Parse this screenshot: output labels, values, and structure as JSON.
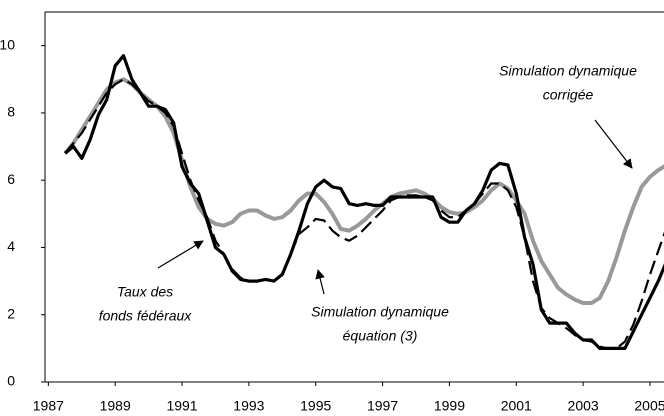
{
  "chart_data": {
    "type": "line",
    "x": [
      1987.5,
      1987.75,
      1988,
      1988.25,
      1988.5,
      1988.75,
      1989,
      1989.25,
      1989.5,
      1989.75,
      1990,
      1990.25,
      1990.5,
      1990.75,
      1991,
      1991.25,
      1991.5,
      1991.75,
      1992,
      1992.25,
      1992.5,
      1992.75,
      1993,
      1993.25,
      1993.5,
      1993.75,
      1994,
      1994.25,
      1994.5,
      1994.75,
      1995,
      1995.25,
      1995.5,
      1995.75,
      1996,
      1996.25,
      1996.5,
      1996.75,
      1997,
      1997.25,
      1997.5,
      1997.75,
      1998,
      1998.25,
      1998.5,
      1998.75,
      1999,
      1999.25,
      1999.5,
      1999.75,
      2000,
      2000.25,
      2000.5,
      2000.75,
      2001,
      2001.25,
      2001.5,
      2001.75,
      2002,
      2002.25,
      2002.5,
      2002.75,
      2003,
      2003.25,
      2003.5,
      2003.75,
      2004,
      2004.25,
      2004.5,
      2004.75,
      2005,
      2005.25,
      2005.5
    ],
    "series": [
      {
        "color": "#000000",
        "style": "solid",
        "values": [
          6.8,
          7.0,
          6.65,
          7.2,
          7.95,
          8.4,
          9.4,
          9.7,
          9.0,
          8.6,
          8.2,
          8.2,
          8.1,
          7.7,
          6.4,
          5.9,
          5.6,
          4.8,
          4.0,
          3.8,
          3.3,
          3.05,
          3.0,
          3.0,
          3.05,
          3.0,
          3.2,
          3.8,
          4.5,
          5.3,
          5.8,
          6.0,
          5.8,
          5.75,
          5.3,
          5.25,
          5.3,
          5.25,
          5.25,
          5.5,
          5.5,
          5.5,
          5.5,
          5.5,
          5.5,
          4.9,
          4.75,
          4.75,
          5.1,
          5.3,
          5.7,
          6.3,
          6.5,
          6.45,
          5.6,
          4.3,
          3.5,
          2.15,
          1.75,
          1.75,
          1.75,
          1.45,
          1.25,
          1.25,
          1.0,
          1.0,
          1.0,
          1.0,
          1.5,
          2.0,
          2.5,
          3.0,
          3.6
        ]
      },
      {
        "color": "#000000",
        "style": "dashed",
        "values": [
          6.8,
          7.1,
          7.4,
          7.8,
          8.2,
          8.6,
          8.85,
          9.0,
          8.85,
          8.6,
          8.35,
          8.2,
          8.0,
          7.6,
          6.8,
          6.0,
          5.4,
          4.9,
          4.2,
          3.8,
          3.35,
          3.1,
          3.0,
          3.0,
          3.05,
          3.0,
          3.2,
          3.8,
          4.4,
          4.6,
          4.85,
          4.8,
          4.5,
          4.3,
          4.2,
          4.35,
          4.6,
          4.85,
          5.1,
          5.4,
          5.5,
          5.55,
          5.55,
          5.5,
          5.4,
          5.1,
          4.9,
          4.9,
          5.1,
          5.3,
          5.6,
          5.9,
          5.9,
          5.7,
          5.2,
          4.3,
          3.0,
          2.2,
          1.9,
          1.75,
          1.6,
          1.4,
          1.25,
          1.2,
          1.05,
          1.0,
          1.0,
          1.2,
          1.7,
          2.4,
          3.2,
          3.9,
          4.6
        ]
      },
      {
        "color": "#999999",
        "style": "solid",
        "values": [
          6.8,
          7.1,
          7.5,
          7.9,
          8.3,
          8.7,
          8.9,
          9.0,
          8.85,
          8.6,
          8.4,
          8.2,
          7.9,
          7.4,
          6.6,
          5.8,
          5.2,
          4.85,
          4.7,
          4.65,
          4.75,
          5.0,
          5.1,
          5.1,
          4.95,
          4.85,
          4.9,
          5.1,
          5.4,
          5.6,
          5.6,
          5.35,
          5.0,
          4.55,
          4.5,
          4.65,
          4.85,
          5.1,
          5.3,
          5.5,
          5.6,
          5.65,
          5.7,
          5.6,
          5.45,
          5.2,
          5.05,
          5.0,
          5.05,
          5.2,
          5.4,
          5.7,
          5.9,
          5.75,
          5.4,
          5.0,
          4.2,
          3.6,
          3.2,
          2.8,
          2.6,
          2.45,
          2.35,
          2.35,
          2.5,
          3.0,
          3.7,
          4.5,
          5.2,
          5.8,
          6.1,
          6.3,
          6.45
        ]
      }
    ],
    "annotations": [
      {
        "lines": [
          "Simulation dynamique",
          "corrigée"
        ]
      },
      {
        "lines": [
          "Taux des",
          "fonds fédéraux"
        ]
      },
      {
        "lines": [
          "Simulation dynamique",
          "équation (3)"
        ]
      }
    ],
    "xlim": [
      1986.9,
      2005.42
    ],
    "xticks": [
      1987,
      1989,
      1991,
      1993,
      1995,
      1997,
      1999,
      2001,
      2003,
      2005
    ],
    "ylim": [
      0,
      11
    ],
    "yticks": [
      0,
      2,
      4,
      6,
      8,
      10
    ]
  }
}
